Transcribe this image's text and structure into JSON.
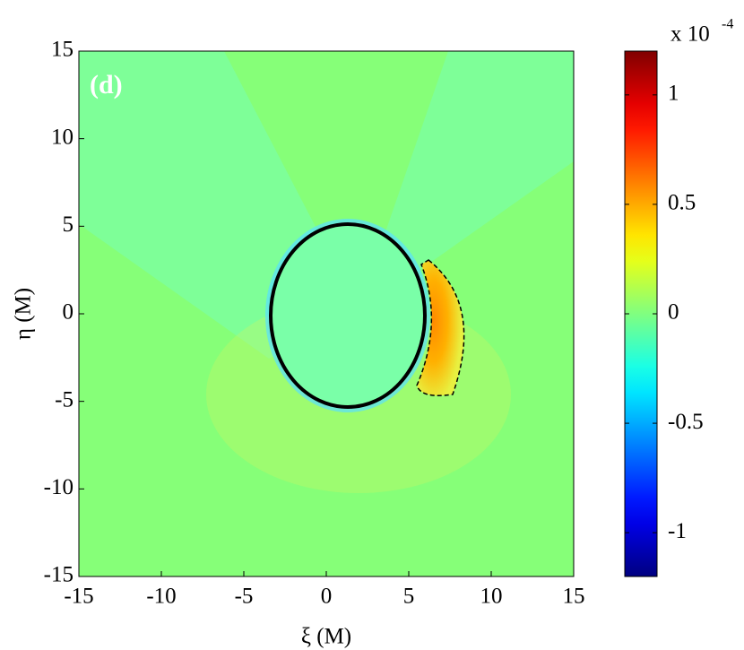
{
  "chart_data": {
    "type": "heatmap",
    "panel_label": "(d)",
    "xlabel": "ξ (M)",
    "ylabel": "η (M)",
    "xlim": [
      -15,
      15
    ],
    "ylim": [
      -15,
      15
    ],
    "xticks": [
      -15,
      -10,
      -5,
      0,
      5,
      10,
      15
    ],
    "yticks": [
      -15,
      -10,
      -5,
      0,
      5,
      10,
      15
    ],
    "colormap": "jet",
    "colorbar": {
      "clim": [
        -1.2,
        1.2
      ],
      "ticks": [
        -1,
        -0.5,
        0,
        0.5,
        1
      ],
      "scale_label": "x 10",
      "scale_exponent": "-4"
    }
  }
}
